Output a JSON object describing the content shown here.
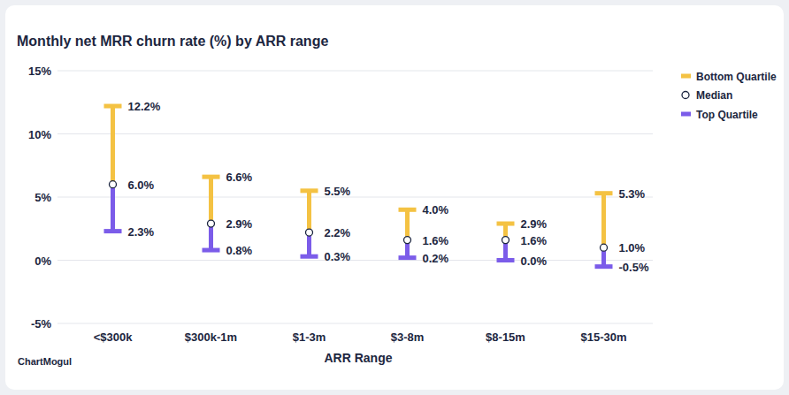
{
  "chart_data": {
    "type": "range",
    "title": "Monthly net MRR churn rate (%) by ARR range",
    "x_label": "ARR Range",
    "source": "ChartMogul",
    "categories": [
      "<$300k",
      "$300k-1m",
      "$1-3m",
      "$3-8m",
      "$8-15m",
      "$15-30m"
    ],
    "series": [
      {
        "name": "Bottom Quartile",
        "color": "#f4c243",
        "values": [
          12.2,
          6.6,
          5.5,
          4.0,
          2.9,
          5.3
        ],
        "value_labels": [
          "12.2%",
          "6.6%",
          "5.5%",
          "4.0%",
          "2.9%",
          "5.3%"
        ]
      },
      {
        "name": "Median",
        "color": "#ffffff",
        "marker": "circle",
        "values": [
          6.0,
          2.9,
          2.2,
          1.6,
          1.6,
          1.0
        ],
        "value_labels": [
          "6.0%",
          "2.9%",
          "2.2%",
          "1.6%",
          "1.6%",
          "1.0%"
        ]
      },
      {
        "name": "Top Quartile",
        "color": "#7b5ce9",
        "values": [
          2.3,
          0.8,
          0.3,
          0.2,
          0.0,
          -0.5
        ],
        "value_labels": [
          "2.3%",
          "0.8%",
          "0.3%",
          "0.2%",
          "0.0%",
          "-0.5%"
        ]
      }
    ],
    "ylim": [
      -5,
      15
    ],
    "yticks": [
      {
        "value": -5,
        "label": "-5%"
      },
      {
        "value": 0,
        "label": "0%"
      },
      {
        "value": 5,
        "label": "5%"
      },
      {
        "value": 10,
        "label": "10%"
      },
      {
        "value": 15,
        "label": "15%"
      }
    ],
    "grid": true,
    "data_labels": true,
    "legend": "top-right"
  }
}
